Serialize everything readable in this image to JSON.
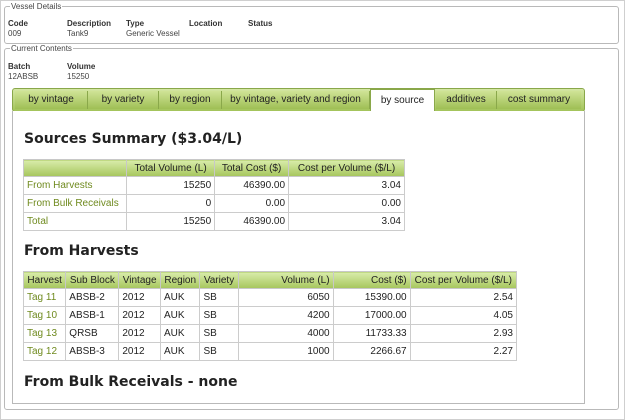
{
  "vessel_details": {
    "legend": "Vessel Details",
    "code_label": "Code",
    "code": "009",
    "description_label": "Description",
    "description": "Tank9",
    "type_label": "Type",
    "type": "Generic Vessel",
    "location_label": "Location",
    "status_label": "Status"
  },
  "current_contents": {
    "legend": "Current Contents",
    "batch_label": "Batch",
    "batch": "12ABSB",
    "volume_label": "Volume",
    "volume": "15250"
  },
  "tabs": [
    {
      "label": "by vintage"
    },
    {
      "label": "by variety"
    },
    {
      "label": "by region"
    },
    {
      "label": "by vintage, variety and region"
    },
    {
      "label": "by source",
      "active": true
    },
    {
      "label": "additives"
    },
    {
      "label": "cost summary"
    }
  ],
  "sources_summary": {
    "title": "Sources Summary ($3.04/L)",
    "headers": [
      "",
      "Total Volume (L)",
      "Total Cost ($)",
      "Cost per Volume ($/L)"
    ],
    "rows": [
      {
        "label": "From Harvests",
        "volume": "15250",
        "cost": "46390.00",
        "cpv": "3.04"
      },
      {
        "label": "From Bulk Receivals",
        "volume": "0",
        "cost": "0.00",
        "cpv": "0.00"
      },
      {
        "label": "Total",
        "volume": "15250",
        "cost": "46390.00",
        "cpv": "3.04"
      }
    ]
  },
  "from_harvests": {
    "title": "From Harvests",
    "headers": [
      "Harvest",
      "Sub Block",
      "Vintage",
      "Region",
      "Variety",
      "Volume (L)",
      "Cost ($)",
      "Cost per Volume ($/L)"
    ],
    "rows": [
      {
        "harvest": "Tag 11",
        "sub_block": "ABSB-2",
        "vintage": "2012",
        "region": "AUK",
        "variety": "SB",
        "volume": "6050",
        "cost": "15390.00",
        "cpv": "2.54"
      },
      {
        "harvest": "Tag 10",
        "sub_block": "ABSB-1",
        "vintage": "2012",
        "region": "AUK",
        "variety": "SB",
        "volume": "4200",
        "cost": "17000.00",
        "cpv": "4.05"
      },
      {
        "harvest": "Tag 13",
        "sub_block": "QRSB",
        "vintage": "2012",
        "region": "AUK",
        "variety": "SB",
        "volume": "4000",
        "cost": "11733.33",
        "cpv": "2.93"
      },
      {
        "harvest": "Tag 12",
        "sub_block": "ABSB-3",
        "vintage": "2012",
        "region": "AUK",
        "variety": "SB",
        "volume": "1000",
        "cost": "2266.67",
        "cpv": "2.27"
      }
    ]
  },
  "from_bulk_receivals": {
    "title": "From Bulk Receivals - none"
  },
  "colors": {
    "accent_green": "#a3c45a",
    "link_green": "#6f8a1e"
  }
}
